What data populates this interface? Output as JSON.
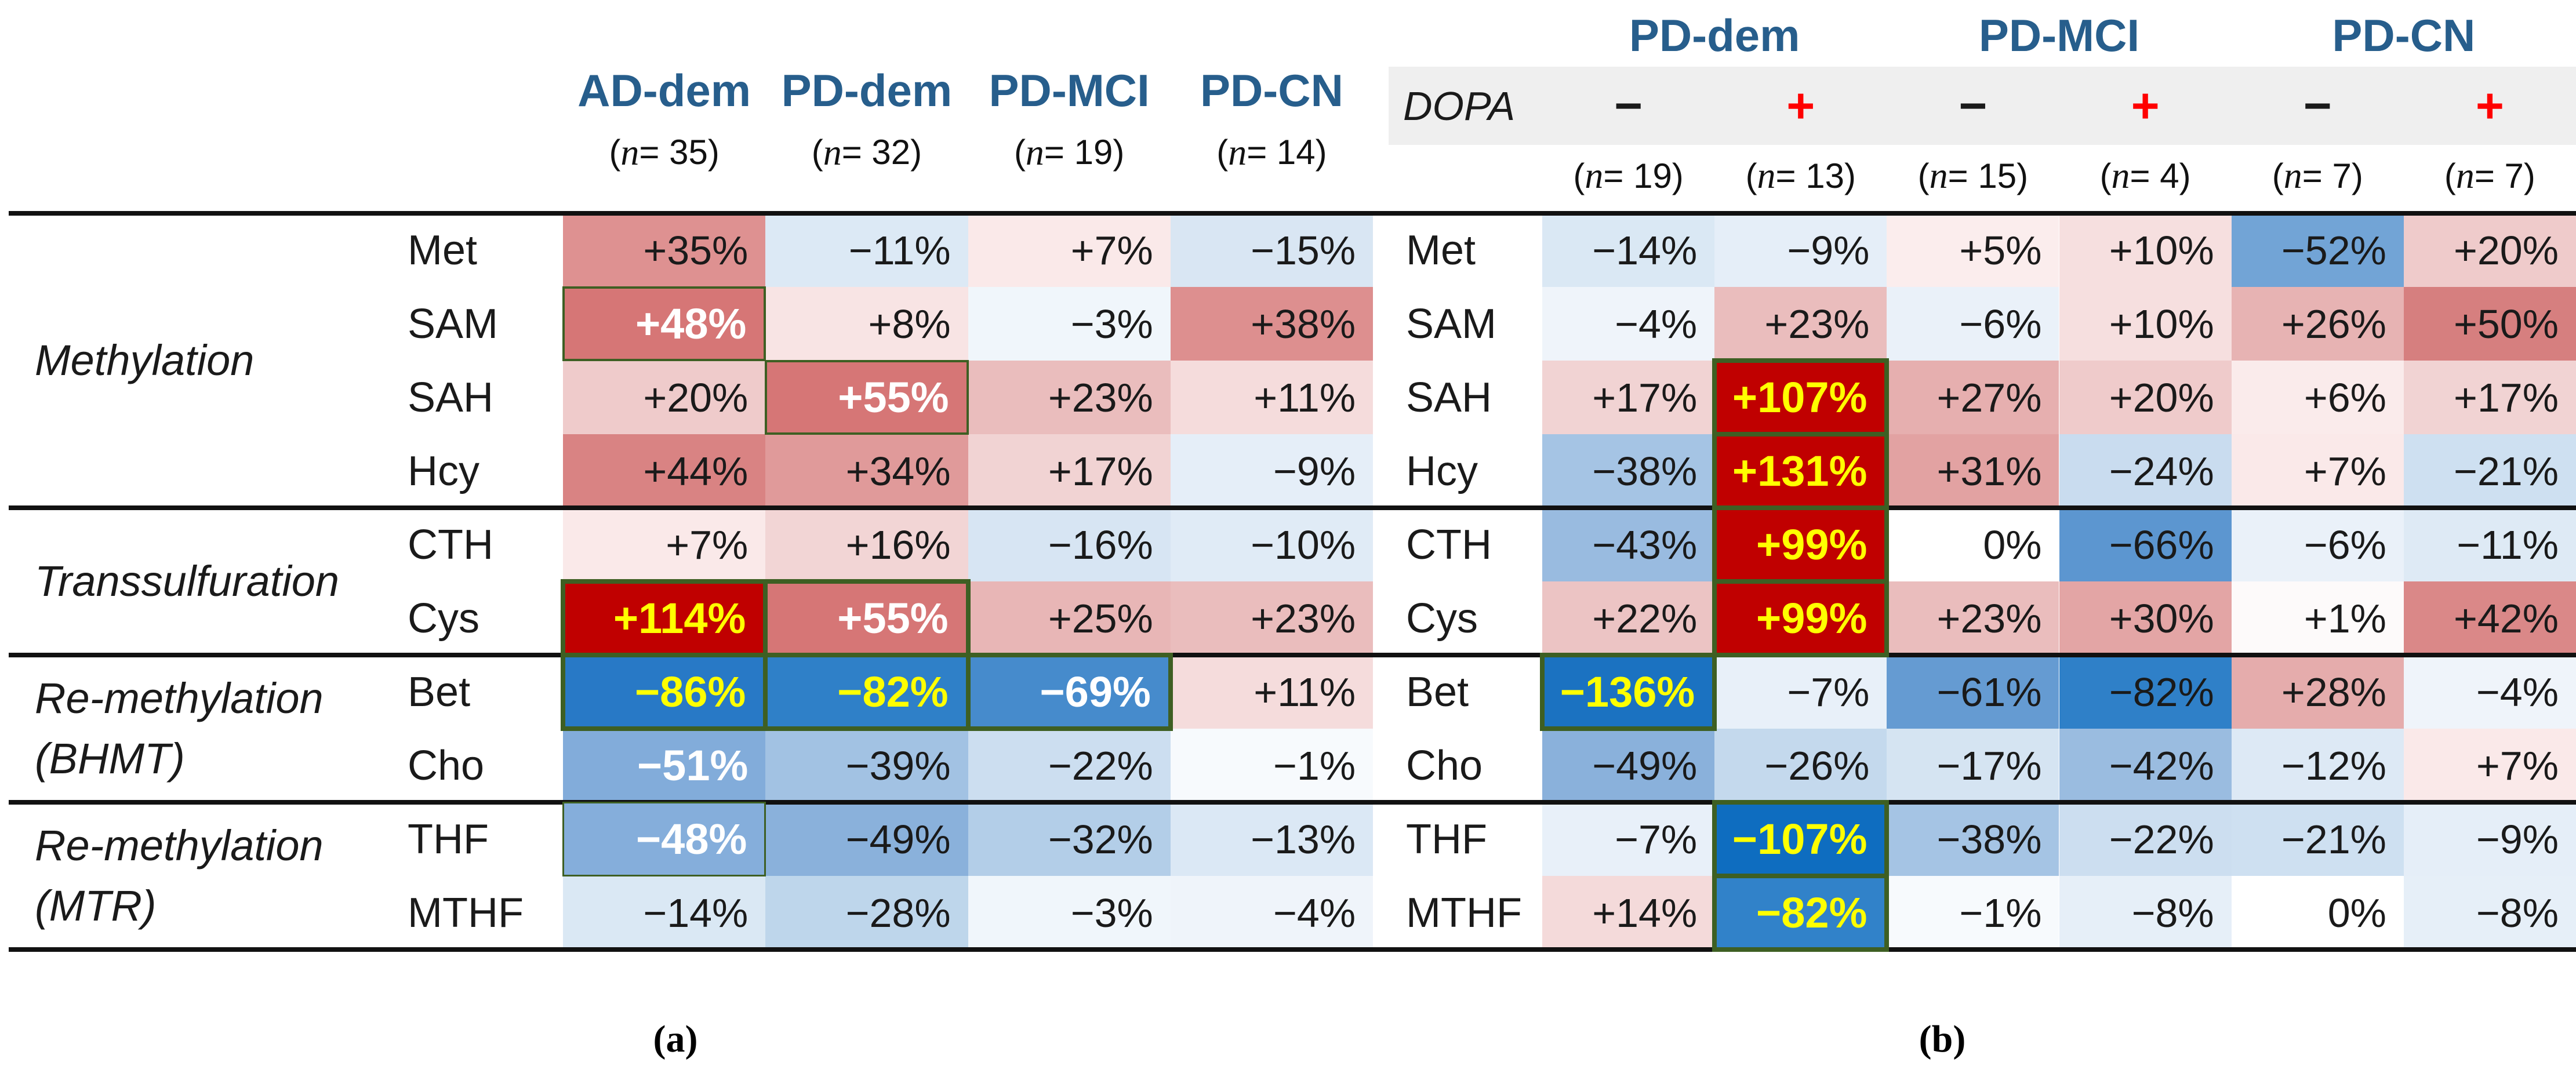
{
  "figure": {
    "type": "heatmap-table",
    "border_highlight_color": "#3E5F23",
    "header_text_color": "#275E8C",
    "dopa_plus_color": "#FF0000",
    "extreme_positive_color": "#C00000",
    "extreme_text_color": "#FFFF00"
  },
  "panel_a": {
    "caption": "(a)",
    "columns": [
      {
        "label": "AD-dem",
        "n": "(n = 35)"
      },
      {
        "label": "PD-dem",
        "n": "(n = 32)"
      },
      {
        "label": "PD-MCI",
        "n": "(n = 19)"
      },
      {
        "label": "PD-CN",
        "n": "(n = 14)"
      }
    ],
    "groups": [
      {
        "lines": [
          "Methylation"
        ],
        "from": 0,
        "to": 3
      },
      {
        "lines": [
          "Transsulfuration"
        ],
        "from": 4,
        "to": 5
      },
      {
        "lines": [
          "Re-methylation",
          "(BHMT)"
        ],
        "from": 6,
        "to": 7
      },
      {
        "lines": [
          "Re-methylation",
          "(MTR)"
        ],
        "from": 8,
        "to": 9
      }
    ],
    "rows": [
      {
        "metabolite": "Met",
        "cells": [
          {
            "v": "+35%",
            "bg": "#DE9191"
          },
          {
            "v": "−11%",
            "bg": "#DCE9F5"
          },
          {
            "v": "+7%",
            "bg": "#FAE9E9"
          },
          {
            "v": "−15%",
            "bg": "#D9E6F3"
          }
        ]
      },
      {
        "metabolite": "SAM",
        "cells": [
          {
            "v": "+48%",
            "bg": "#D67676",
            "fg": "#FFFFFF",
            "bold": true,
            "border": "medium"
          },
          {
            "v": "+8%",
            "bg": "#F8E4E4"
          },
          {
            "v": "−3%",
            "bg": "#F0F6FB"
          },
          {
            "v": "+38%",
            "bg": "#DD8F8F"
          }
        ]
      },
      {
        "metabolite": "SAH",
        "cells": [
          {
            "v": "+20%",
            "bg": "#EFCBCB"
          },
          {
            "v": "+55%",
            "bg": "#D67676",
            "fg": "#FFFFFF",
            "bold": true,
            "border": "medium"
          },
          {
            "v": "+23%",
            "bg": "#EABDBD"
          },
          {
            "v": "+11%",
            "bg": "#F5DCDC"
          }
        ]
      },
      {
        "metabolite": "Hcy",
        "cells": [
          {
            "v": "+44%",
            "bg": "#D98383"
          },
          {
            "v": "+34%",
            "bg": "#E09A9A"
          },
          {
            "v": "+17%",
            "bg": "#F1D3D3"
          },
          {
            "v": "−9%",
            "bg": "#E5EEF8"
          }
        ]
      },
      {
        "metabolite": "CTH",
        "cells": [
          {
            "v": "+7%",
            "bg": "#FAE9E9"
          },
          {
            "v": "+16%",
            "bg": "#F2D5D5"
          },
          {
            "v": "−16%",
            "bg": "#D7E5F3"
          },
          {
            "v": "−10%",
            "bg": "#E0EBF6"
          }
        ]
      },
      {
        "metabolite": "Cys",
        "cells": [
          {
            "v": "+114%",
            "bg": "#C00000",
            "fg": "#FFFF00",
            "bold": true,
            "border": "thick"
          },
          {
            "v": "+55%",
            "bg": "#D67676",
            "fg": "#FFFFFF",
            "bold": true,
            "border": "thick"
          },
          {
            "v": "+25%",
            "bg": "#E8B6B6"
          },
          {
            "v": "+23%",
            "bg": "#EABDBD"
          }
        ]
      },
      {
        "metabolite": "Bet",
        "cells": [
          {
            "v": "−86%",
            "bg": "#2879C6",
            "fg": "#FFFF00",
            "bold": true,
            "border": "thick"
          },
          {
            "v": "−82%",
            "bg": "#2F80C8",
            "fg": "#FFFF00",
            "bold": true,
            "border": "thick"
          },
          {
            "v": "−69%",
            "bg": "#468BCC",
            "fg": "#FFFFFF",
            "bold": true,
            "border": "thick"
          },
          {
            "v": "+11%",
            "bg": "#F5DCDC"
          }
        ]
      },
      {
        "metabolite": "Cho",
        "cells": [
          {
            "v": "−51%",
            "bg": "#82ACDA",
            "fg": "#FFFFFF",
            "bold": true
          },
          {
            "v": "−39%",
            "bg": "#A2C2E3"
          },
          {
            "v": "−22%",
            "bg": "#CCDEF0"
          },
          {
            "v": "−1%",
            "bg": "#F7FAFD"
          }
        ]
      },
      {
        "metabolite": "THF",
        "cells": [
          {
            "v": "−48%",
            "bg": "#85AEDB",
            "fg": "#FFFFFF",
            "bold": true,
            "border": "thin"
          },
          {
            "v": "−49%",
            "bg": "#8AB1DB"
          },
          {
            "v": "−32%",
            "bg": "#B3CEE8"
          },
          {
            "v": "−13%",
            "bg": "#DBE8F5"
          }
        ]
      },
      {
        "metabolite": "MTHF",
        "cells": [
          {
            "v": "−14%",
            "bg": "#DAE8F4"
          },
          {
            "v": "−28%",
            "bg": "#BED6EB"
          },
          {
            "v": "−3%",
            "bg": "#F0F6FB"
          },
          {
            "v": "−4%",
            "bg": "#EFF4FA"
          }
        ]
      }
    ]
  },
  "panel_b": {
    "caption": "(b)",
    "group_headers": [
      "PD-dem",
      "PD-MCI",
      "PD-CN"
    ],
    "dopa": {
      "label": "DOPA",
      "signs": [
        "−",
        "+",
        "−",
        "+",
        "−",
        "+"
      ]
    },
    "ns": [
      "(n = 19)",
      "(n = 13)",
      "(n = 15)",
      "(n = 4)",
      "(n = 7)",
      "(n = 7)"
    ],
    "rows": [
      {
        "metabolite": "Met",
        "cells": [
          {
            "v": "−14%",
            "bg": "#DAE8F4"
          },
          {
            "v": "−9%",
            "bg": "#E5EEF8"
          },
          {
            "v": "+5%",
            "bg": "#FBEDED"
          },
          {
            "v": "+10%",
            "bg": "#F6DFDF"
          },
          {
            "v": "−52%",
            "bg": "#72A4D6"
          },
          {
            "v": "+20%",
            "bg": "#EFCBCB"
          }
        ]
      },
      {
        "metabolite": "SAM",
        "cells": [
          {
            "v": "−4%",
            "bg": "#EFF4FA"
          },
          {
            "v": "+23%",
            "bg": "#EABDBD"
          },
          {
            "v": "−6%",
            "bg": "#EAF1F9"
          },
          {
            "v": "+10%",
            "bg": "#F6DFDF"
          },
          {
            "v": "+26%",
            "bg": "#E7B3B3"
          },
          {
            "v": "+50%",
            "bg": "#D67F7F"
          }
        ]
      },
      {
        "metabolite": "SAH",
        "cells": [
          {
            "v": "+17%",
            "bg": "#F1D3D3"
          },
          {
            "v": "+107%",
            "bg": "#C00000",
            "fg": "#FFFF00",
            "bold": true,
            "border": "thick"
          },
          {
            "v": "+27%",
            "bg": "#E6AFAF"
          },
          {
            "v": "+20%",
            "bg": "#EFCBCB"
          },
          {
            "v": "+6%",
            "bg": "#FAEBEB"
          },
          {
            "v": "+17%",
            "bg": "#F1D3D3"
          }
        ]
      },
      {
        "metabolite": "Hcy",
        "cells": [
          {
            "v": "−38%",
            "bg": "#A5C4E4"
          },
          {
            "v": "+131%",
            "bg": "#C00000",
            "fg": "#FFFF00",
            "bold": true,
            "border": "thick"
          },
          {
            "v": "+31%",
            "bg": "#E2A2A2"
          },
          {
            "v": "−24%",
            "bg": "#C9DCEF"
          },
          {
            "v": "+7%",
            "bg": "#FAE9E9"
          },
          {
            "v": "−21%",
            "bg": "#CEE0F1"
          }
        ]
      },
      {
        "metabolite": "CTH",
        "cells": [
          {
            "v": "−43%",
            "bg": "#99BBE0"
          },
          {
            "v": "+99%",
            "bg": "#C00000",
            "fg": "#FFFF00",
            "bold": true,
            "border": "thick"
          },
          {
            "v": "0%",
            "bg": "#FFFFFF"
          },
          {
            "v": "−66%",
            "bg": "#5C96D0"
          },
          {
            "v": "−6%",
            "bg": "#EAF1F9"
          },
          {
            "v": "−11%",
            "bg": "#DEEAF5"
          }
        ]
      },
      {
        "metabolite": "Cys",
        "cells": [
          {
            "v": "+22%",
            "bg": "#ECC4C4"
          },
          {
            "v": "+99%",
            "bg": "#C00000",
            "fg": "#FFFF00",
            "bold": true,
            "border": "thick"
          },
          {
            "v": "+23%",
            "bg": "#EABDBD"
          },
          {
            "v": "+30%",
            "bg": "#E3A5A5"
          },
          {
            "v": "+1%",
            "bg": "#FDFAFA"
          },
          {
            "v": "+42%",
            "bg": "#DA8888"
          }
        ]
      },
      {
        "metabolite": "Bet",
        "cells": [
          {
            "v": "−136%",
            "bg": "#1B72C1",
            "fg": "#FFFF00",
            "bold": true,
            "border": "thick"
          },
          {
            "v": "−7%",
            "bg": "#E8F0F9"
          },
          {
            "v": "−61%",
            "bg": "#659BD2"
          },
          {
            "v": "−82%",
            "bg": "#2F80C8"
          },
          {
            "v": "+28%",
            "bg": "#E5ACAC"
          },
          {
            "v": "−4%",
            "bg": "#EFF4FA"
          }
        ]
      },
      {
        "metabolite": "Cho",
        "cells": [
          {
            "v": "−49%",
            "bg": "#8AB1DB"
          },
          {
            "v": "−26%",
            "bg": "#C4D9ED"
          },
          {
            "v": "−17%",
            "bg": "#D5E4F2"
          },
          {
            "v": "−42%",
            "bg": "#9ABCE0"
          },
          {
            "v": "−12%",
            "bg": "#DDE9F5"
          },
          {
            "v": "+7%",
            "bg": "#FAE9E9"
          }
        ]
      },
      {
        "metabolite": "THF",
        "cells": [
          {
            "v": "−7%",
            "bg": "#E8F0F9"
          },
          {
            "v": "−107%",
            "bg": "#0E6DC0",
            "fg": "#FFFF00",
            "bold": true,
            "border": "thick"
          },
          {
            "v": "−38%",
            "bg": "#A5C4E4"
          },
          {
            "v": "−22%",
            "bg": "#CCDEF0"
          },
          {
            "v": "−21%",
            "bg": "#CEE0F1"
          },
          {
            "v": "−9%",
            "bg": "#E5EEF8"
          }
        ]
      },
      {
        "metabolite": "MTHF",
        "cells": [
          {
            "v": "+14%",
            "bg": "#F4DADA"
          },
          {
            "v": "−82%",
            "bg": "#3182C9",
            "fg": "#FFFF00",
            "bold": true,
            "border": "thick"
          },
          {
            "v": "−1%",
            "bg": "#F7FAFD"
          },
          {
            "v": "−8%",
            "bg": "#E6EFF8"
          },
          {
            "v": "0%",
            "bg": "#FFFFFF"
          },
          {
            "v": "−8%",
            "bg": "#E6EFF8"
          }
        ]
      }
    ]
  },
  "chart_data": [
    {
      "type": "heatmap",
      "title": "(a)",
      "rows": [
        "Met",
        "SAM",
        "SAH",
        "Hcy",
        "CTH",
        "Cys",
        "Bet",
        "Cho",
        "THF",
        "MTHF"
      ],
      "row_groups": [
        {
          "name": "Methylation",
          "rows": [
            "Met",
            "SAM",
            "SAH",
            "Hcy"
          ]
        },
        {
          "name": "Transsulfuration",
          "rows": [
            "CTH",
            "Cys"
          ]
        },
        {
          "name": "Re-methylation (BHMT)",
          "rows": [
            "Bet",
            "Cho"
          ]
        },
        {
          "name": "Re-methylation (MTR)",
          "rows": [
            "THF",
            "MTHF"
          ]
        }
      ],
      "columns": [
        "AD-dem (n = 35)",
        "PD-dem (n = 32)",
        "PD-MCI (n = 19)",
        "PD-CN (n = 14)"
      ],
      "values_percent": [
        [
          35,
          -11,
          7,
          -15
        ],
        [
          48,
          8,
          -3,
          38
        ],
        [
          20,
          55,
          23,
          11
        ],
        [
          44,
          34,
          17,
          -9
        ],
        [
          7,
          16,
          -16,
          -10
        ],
        [
          114,
          55,
          25,
          23
        ],
        [
          -86,
          -82,
          -69,
          11
        ],
        [
          -51,
          -39,
          -22,
          -1
        ],
        [
          -48,
          -49,
          -32,
          -13
        ],
        [
          -14,
          -28,
          -3,
          -4
        ]
      ],
      "highlighted_cells": [
        [
          "SAM",
          "AD-dem"
        ],
        [
          "SAH",
          "PD-dem"
        ],
        [
          "Cys",
          "AD-dem"
        ],
        [
          "Cys",
          "PD-dem"
        ],
        [
          "Bet",
          "AD-dem"
        ],
        [
          "Bet",
          "PD-dem"
        ],
        [
          "Bet",
          "PD-MCI"
        ],
        [
          "THF",
          "AD-dem"
        ]
      ],
      "colormap": "blue-white-red diverging"
    },
    {
      "type": "heatmap",
      "title": "(b)",
      "rows": [
        "Met",
        "SAM",
        "SAH",
        "Hcy",
        "CTH",
        "Cys",
        "Bet",
        "Cho",
        "THF",
        "MTHF"
      ],
      "row_groups": [
        {
          "name": "Methylation",
          "rows": [
            "Met",
            "SAM",
            "SAH",
            "Hcy"
          ]
        },
        {
          "name": "Transsulfuration",
          "rows": [
            "CTH",
            "Cys"
          ]
        },
        {
          "name": "Re-methylation (BHMT)",
          "rows": [
            "Bet",
            "Cho"
          ]
        },
        {
          "name": "Re-methylation (MTR)",
          "rows": [
            "THF",
            "MTHF"
          ]
        }
      ],
      "columns": [
        "PD-dem DOPA− (n = 19)",
        "PD-dem DOPA+ (n = 13)",
        "PD-MCI DOPA− (n = 15)",
        "PD-MCI DOPA+ (n = 4)",
        "PD-CN DOPA− (n = 7)",
        "PD-CN DOPA+ (n = 7)"
      ],
      "values_percent": [
        [
          -14,
          -9,
          5,
          10,
          -52,
          20
        ],
        [
          -4,
          23,
          -6,
          10,
          26,
          50
        ],
        [
          17,
          107,
          27,
          20,
          6,
          17
        ],
        [
          -38,
          131,
          31,
          -24,
          7,
          -21
        ],
        [
          -43,
          99,
          0,
          -66,
          -6,
          -11
        ],
        [
          22,
          99,
          23,
          30,
          1,
          42
        ],
        [
          -136,
          -7,
          -61,
          -82,
          28,
          -4
        ],
        [
          -49,
          -26,
          -17,
          -42,
          -12,
          7
        ],
        [
          -7,
          -107,
          -38,
          -22,
          -21,
          -9
        ],
        [
          14,
          -82,
          -1,
          -8,
          0,
          -8
        ]
      ],
      "highlighted_cells": [
        [
          "SAH",
          "PD-dem DOPA+"
        ],
        [
          "Hcy",
          "PD-dem DOPA+"
        ],
        [
          "CTH",
          "PD-dem DOPA+"
        ],
        [
          "Cys",
          "PD-dem DOPA+"
        ],
        [
          "Bet",
          "PD-dem DOPA−"
        ],
        [
          "THF",
          "PD-dem DOPA+"
        ],
        [
          "MTHF",
          "PD-dem DOPA+"
        ]
      ],
      "colormap": "blue-white-red diverging"
    }
  ]
}
